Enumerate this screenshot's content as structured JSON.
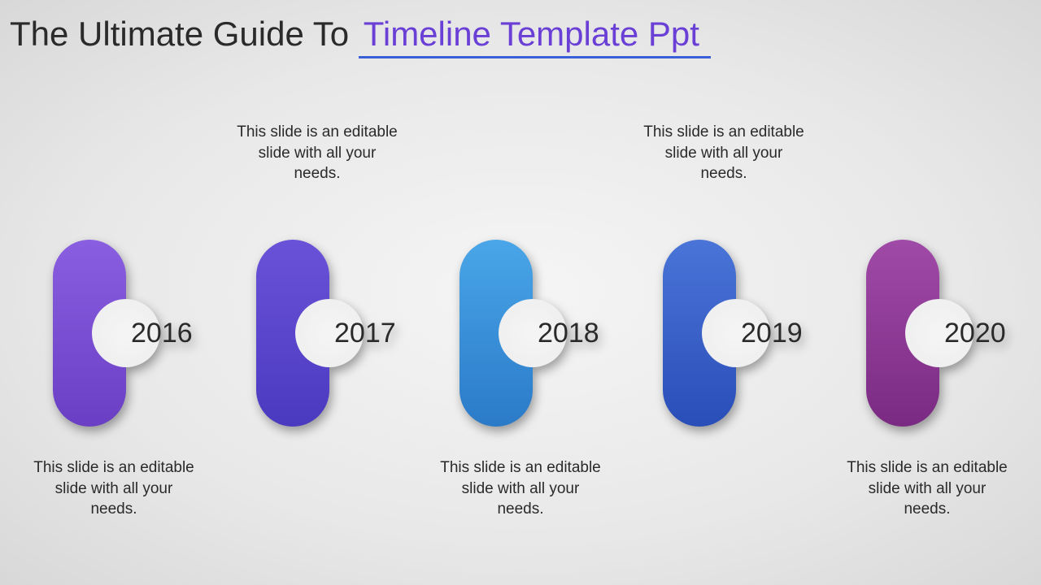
{
  "title": {
    "prefix": "The Ultimate Guide To ",
    "accent": "Timeline Template Ppt",
    "prefix_color": "#2a2a2a",
    "accent_color": "#6a3fd6",
    "underline_color": "#3a5fd6",
    "fontsize": 42
  },
  "background": {
    "type": "radial-gradient",
    "inner": "#f5f5f5",
    "outer": "#d8d8d8"
  },
  "timeline": {
    "type": "infographic",
    "pill_width": 90,
    "pill_height": 230,
    "pill_radius": 45,
    "notch_diameter": 84,
    "year_fontsize": 34,
    "desc_fontsize": 19,
    "text_color": "#2a2a2a",
    "shadow": "3px 6px 6px rgba(0,0,0,0.35)",
    "items": [
      {
        "year": "2016",
        "desc": "This slide is an editable slide with all your needs.",
        "desc_position": "bottom",
        "color_top": "#8a5ee0",
        "color_bottom": "#6b3fc4"
      },
      {
        "year": "2017",
        "desc": "This slide is an editable slide with all your needs.",
        "desc_position": "top",
        "color_top": "#6a52d8",
        "color_bottom": "#4a3ac0"
      },
      {
        "year": "2018",
        "desc": "This slide is an editable slide with all your needs.",
        "desc_position": "bottom",
        "color_top": "#4aa6e8",
        "color_bottom": "#2a7ac8"
      },
      {
        "year": "2019",
        "desc": "This slide is an editable slide with all your needs.",
        "desc_position": "top",
        "color_top": "#4a74d8",
        "color_bottom": "#2a4eb8"
      },
      {
        "year": "2020",
        "desc": "This slide is an editable slide with all your needs.",
        "desc_position": "bottom",
        "color_top": "#a04aa8",
        "color_bottom": "#7a2a82"
      }
    ]
  }
}
